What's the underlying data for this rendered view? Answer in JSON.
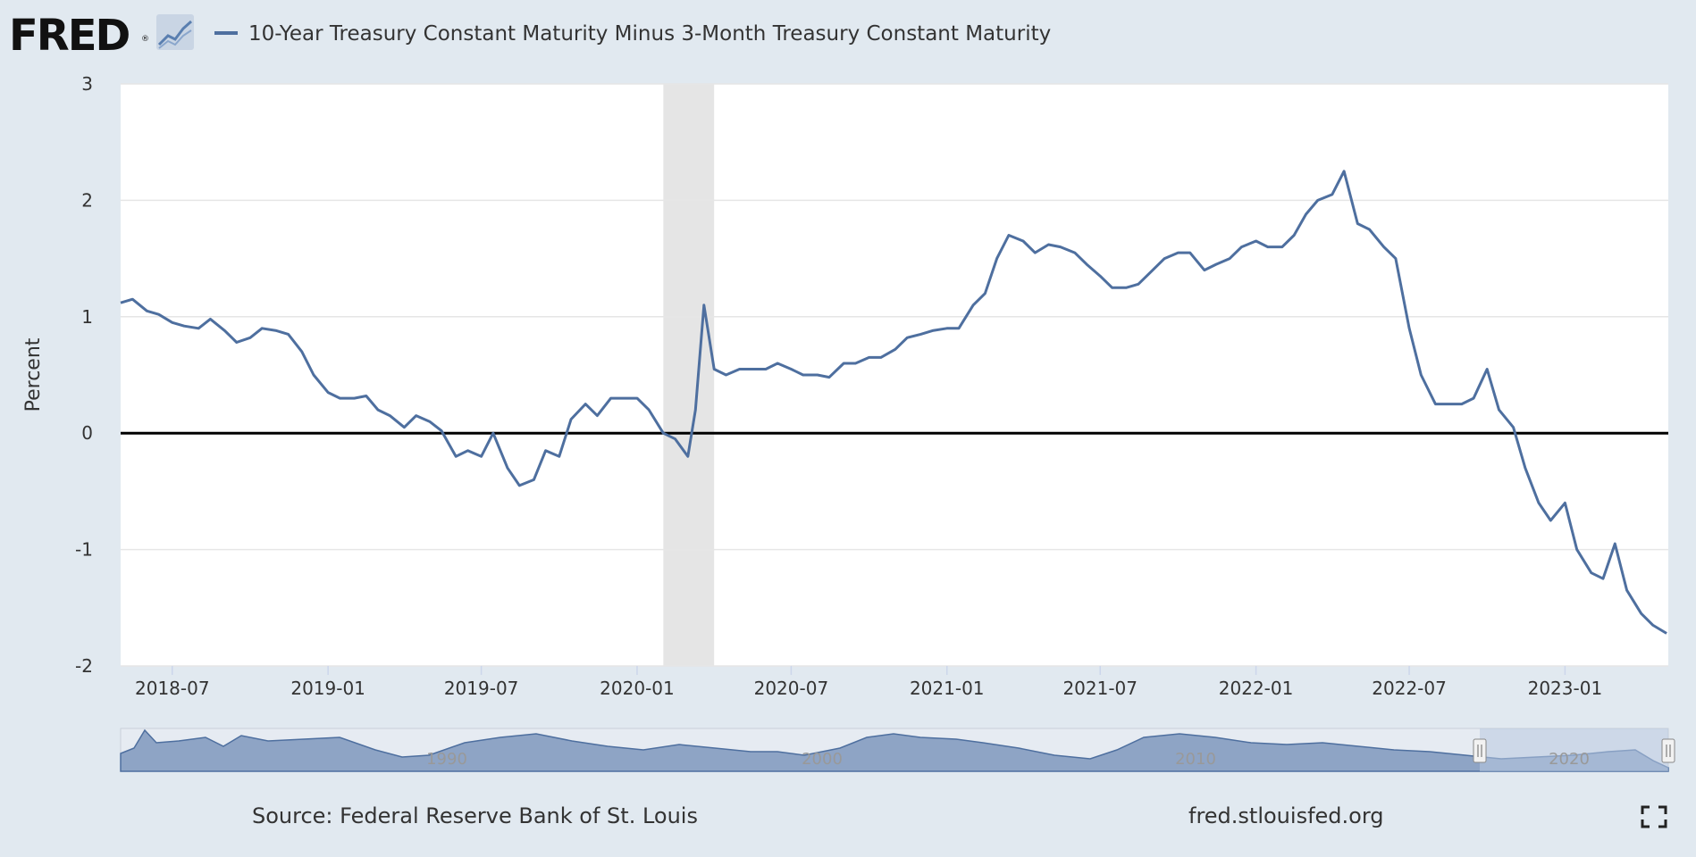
{
  "header": {
    "logo_text": "FRED",
    "registered_mark": "®",
    "series_title": "10-Year Treasury Constant Maturity Minus 3-Month Treasury Constant Maturity"
  },
  "footer": {
    "source": "Source: Federal Reserve Bank of St. Louis",
    "site": "fred.stlouisfed.org"
  },
  "navigator": {
    "labels": [
      "1990",
      "2000",
      "2010",
      "2020"
    ]
  },
  "colors": {
    "series": "#4e6f9f",
    "background": "#e1e9f0",
    "plot": "#ffffff",
    "recession": "#e5e5e5"
  },
  "chart_data": {
    "type": "line",
    "title": "10-Year Treasury Constant Maturity Minus 3-Month Treasury Constant Maturity",
    "ylabel": "Percent",
    "xlabel": "",
    "ylim": [
      -2,
      3
    ],
    "yticks": [
      -2,
      -1,
      0,
      1,
      2,
      3
    ],
    "xlim": [
      "2018-05-01",
      "2023-05-03"
    ],
    "xticks": [
      "2018-07",
      "2019-01",
      "2019-07",
      "2020-01",
      "2020-07",
      "2021-01",
      "2021-07",
      "2022-01",
      "2022-07",
      "2023-01"
    ],
    "recession": [
      "2020-02-01",
      "2020-04-01"
    ],
    "zero_line": true,
    "grid": true,
    "series": [
      {
        "name": "10-Year Treasury Constant Maturity Minus 3-Month Treasury Constant Maturity",
        "x": [
          "2018-05-01",
          "2018-05-15",
          "2018-06-01",
          "2018-06-15",
          "2018-07-01",
          "2018-07-15",
          "2018-08-01",
          "2018-08-15",
          "2018-09-01",
          "2018-09-15",
          "2018-10-01",
          "2018-10-15",
          "2018-11-01",
          "2018-11-15",
          "2018-12-01",
          "2018-12-15",
          "2019-01-01",
          "2019-01-15",
          "2019-02-01",
          "2019-02-15",
          "2019-03-01",
          "2019-03-15",
          "2019-04-01",
          "2019-04-15",
          "2019-05-01",
          "2019-05-15",
          "2019-06-01",
          "2019-06-15",
          "2019-07-01",
          "2019-07-15",
          "2019-08-01",
          "2019-08-15",
          "2019-09-01",
          "2019-09-15",
          "2019-10-01",
          "2019-10-15",
          "2019-11-01",
          "2019-11-15",
          "2019-12-01",
          "2019-12-15",
          "2020-01-01",
          "2020-01-15",
          "2020-02-01",
          "2020-02-15",
          "2020-03-01",
          "2020-03-10",
          "2020-03-20",
          "2020-04-01",
          "2020-04-15",
          "2020-05-01",
          "2020-05-15",
          "2020-06-01",
          "2020-06-15",
          "2020-07-01",
          "2020-07-15",
          "2020-08-01",
          "2020-08-15",
          "2020-09-01",
          "2020-09-15",
          "2020-10-01",
          "2020-10-15",
          "2020-11-01",
          "2020-11-15",
          "2020-12-01",
          "2020-12-15",
          "2021-01-01",
          "2021-01-15",
          "2021-02-01",
          "2021-02-15",
          "2021-03-01",
          "2021-03-15",
          "2021-04-01",
          "2021-04-15",
          "2021-05-01",
          "2021-05-15",
          "2021-06-01",
          "2021-06-15",
          "2021-07-01",
          "2021-07-15",
          "2021-08-01",
          "2021-08-15",
          "2021-09-01",
          "2021-09-15",
          "2021-10-01",
          "2021-10-15",
          "2021-11-01",
          "2021-11-15",
          "2021-12-01",
          "2021-12-15",
          "2022-01-01",
          "2022-01-15",
          "2022-02-01",
          "2022-02-15",
          "2022-03-01",
          "2022-03-15",
          "2022-04-01",
          "2022-04-15",
          "2022-05-01",
          "2022-05-15",
          "2022-06-01",
          "2022-06-15",
          "2022-07-01",
          "2022-07-15",
          "2022-08-01",
          "2022-08-15",
          "2022-09-01",
          "2022-09-15",
          "2022-10-01",
          "2022-10-15",
          "2022-11-01",
          "2022-11-15",
          "2022-12-01",
          "2022-12-15",
          "2023-01-01",
          "2023-01-15",
          "2023-02-01",
          "2023-02-15",
          "2023-03-01",
          "2023-03-15",
          "2023-04-01",
          "2023-04-15",
          "2023-05-01"
        ],
        "values": [
          1.12,
          1.15,
          1.05,
          1.02,
          0.95,
          0.92,
          0.9,
          0.98,
          0.88,
          0.78,
          0.82,
          0.9,
          0.88,
          0.85,
          0.7,
          0.5,
          0.35,
          0.3,
          0.3,
          0.32,
          0.2,
          0.15,
          0.05,
          0.15,
          0.1,
          0.02,
          -0.2,
          -0.15,
          -0.2,
          0.0,
          -0.3,
          -0.45,
          -0.4,
          -0.15,
          -0.2,
          0.12,
          0.25,
          0.15,
          0.3,
          0.3,
          0.3,
          0.2,
          0.0,
          -0.05,
          -0.2,
          0.2,
          1.1,
          0.55,
          0.5,
          0.55,
          0.55,
          0.55,
          0.6,
          0.55,
          0.5,
          0.5,
          0.48,
          0.6,
          0.6,
          0.65,
          0.65,
          0.72,
          0.82,
          0.85,
          0.88,
          0.9,
          0.9,
          1.1,
          1.2,
          1.5,
          1.7,
          1.65,
          1.55,
          1.62,
          1.6,
          1.55,
          1.45,
          1.35,
          1.25,
          1.25,
          1.28,
          1.4,
          1.5,
          1.55,
          1.55,
          1.4,
          1.45,
          1.5,
          1.6,
          1.65,
          1.6,
          1.6,
          1.7,
          1.88,
          2.0,
          2.05,
          2.25,
          1.8,
          1.75,
          1.6,
          1.5,
          0.9,
          0.5,
          0.25,
          0.25,
          0.25,
          0.3,
          0.55,
          0.2,
          0.05,
          -0.3,
          -0.6,
          -0.75,
          -0.6,
          -1.0,
          -1.2,
          -1.25,
          -0.95,
          -1.35,
          -1.55,
          -1.65,
          -1.72
        ]
      }
    ]
  }
}
